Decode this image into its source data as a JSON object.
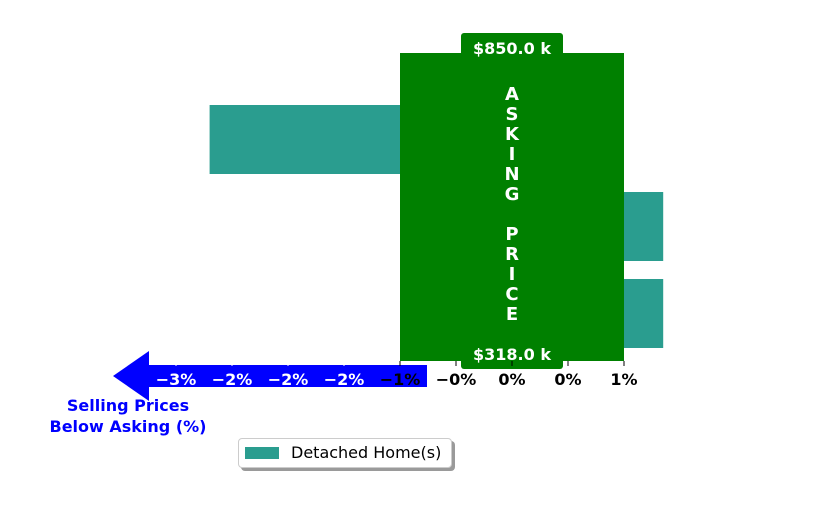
{
  "chart_data": {
    "type": "bar",
    "orientation": "horizontal",
    "series": [
      {
        "name": "Detached Home(s)",
        "color": "#2a9d8f",
        "values": [
          -2.7,
          1.35,
          1.35
        ]
      }
    ],
    "xlim": [
      -4.2,
      1.35
    ],
    "x_ticks": [
      {
        "value": -3,
        "label": "−3%",
        "color": "#ffffff"
      },
      {
        "value": -2.5,
        "label": "−2%",
        "color": "#ffffff"
      },
      {
        "value": -2,
        "label": "−2%",
        "color": "#ffffff"
      },
      {
        "value": -1.5,
        "label": "−2%",
        "color": "#ffffff"
      },
      {
        "value": -1,
        "label": "−1%",
        "color": "#000000"
      },
      {
        "value": -0.5,
        "label": "−0%",
        "color": "#000000"
      },
      {
        "value": 0,
        "label": "0%",
        "color": "#000000"
      },
      {
        "value": 0.5,
        "label": "0%",
        "color": "#000000"
      },
      {
        "value": 1,
        "label": "1%",
        "color": "#000000"
      }
    ],
    "asking_price_band": {
      "from": -1,
      "to": 1,
      "color": "#008000",
      "vertical_label": "ASKING PRICE",
      "top_price": "$850.0 k",
      "bottom_price": "$318.0 k"
    },
    "arrow": {
      "color": "#0000ff",
      "label_lines": [
        "Selling Prices",
        "Below Asking (%)"
      ]
    },
    "legend": {
      "position": "bottom-center",
      "entries": [
        "Detached Home(s)"
      ]
    }
  }
}
